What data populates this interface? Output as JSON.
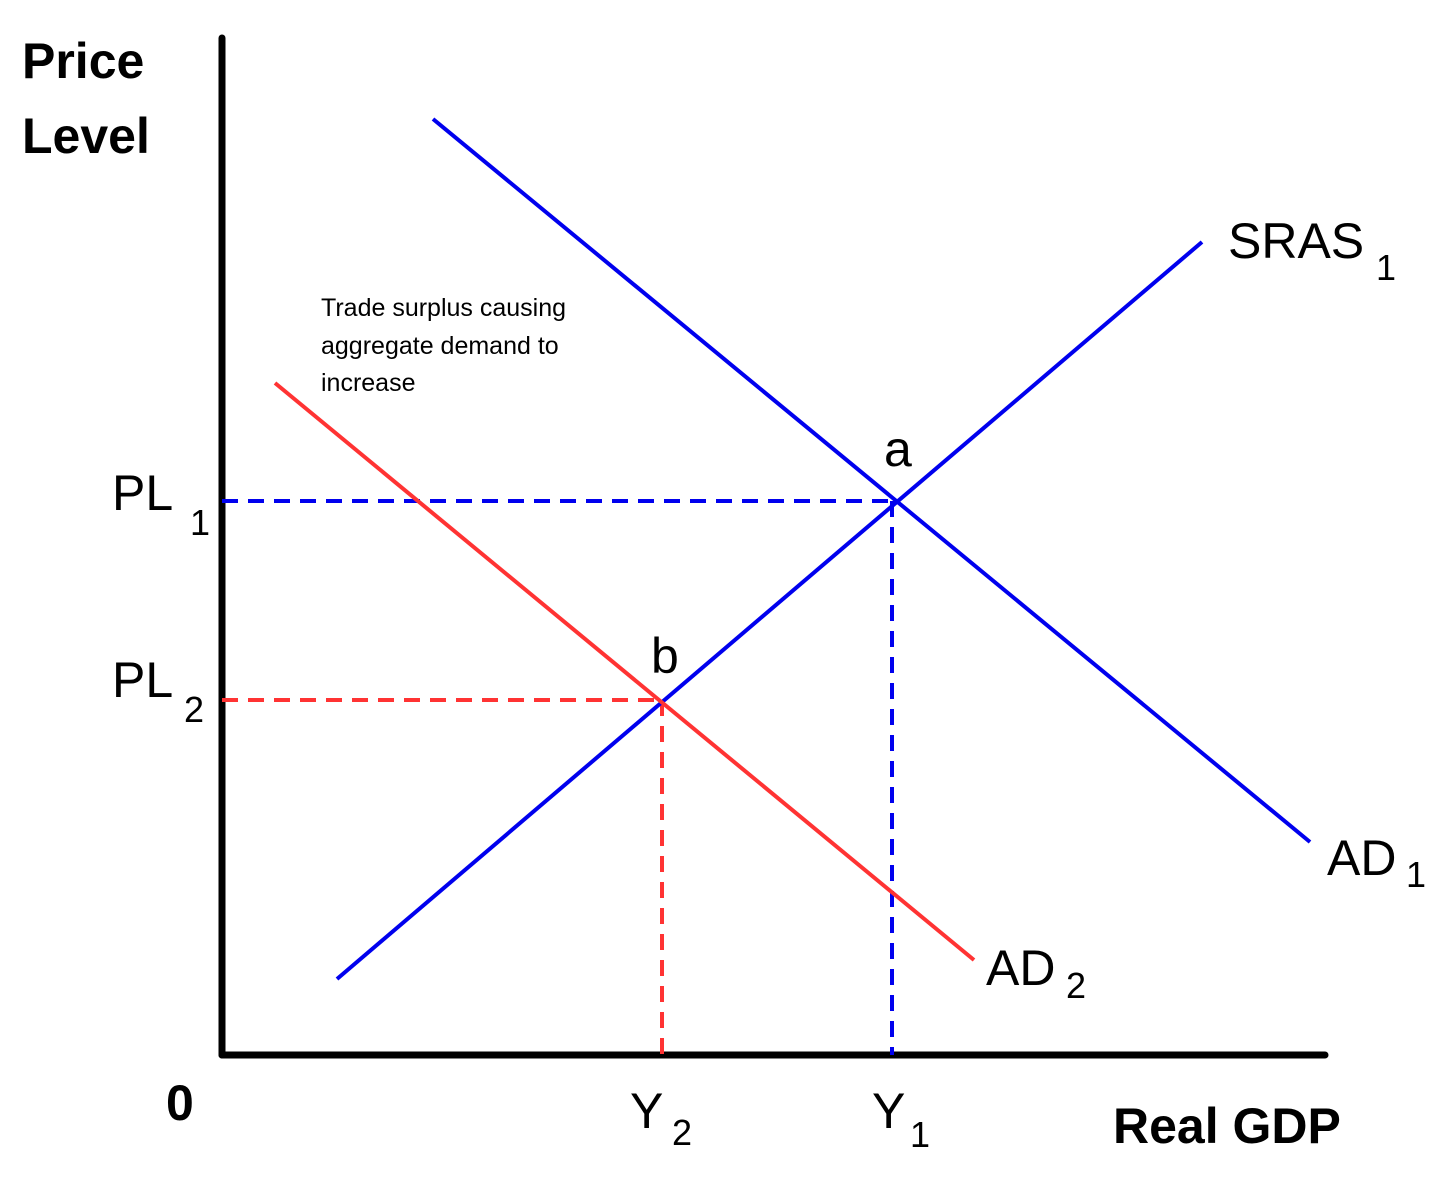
{
  "axes": {
    "y_label": [
      "Price",
      "Level"
    ],
    "x_label": "Real GDP",
    "origin": "0"
  },
  "curves": [
    {
      "name": "SRAS",
      "sub": "1"
    },
    {
      "name": "AD",
      "sub": "1"
    },
    {
      "name": "AD",
      "sub": "2"
    }
  ],
  "points": [
    {
      "label": "a"
    },
    {
      "label": "b"
    }
  ],
  "price_levels": [
    {
      "name": "PL",
      "sub": "1"
    },
    {
      "name": "PL",
      "sub": "2"
    }
  ],
  "outputs": [
    {
      "name": "Y",
      "sub": "2"
    },
    {
      "name": "Y",
      "sub": "1"
    }
  ],
  "annotation": [
    "Trade surplus causing",
    "aggregate demand to",
    "increase"
  ]
}
